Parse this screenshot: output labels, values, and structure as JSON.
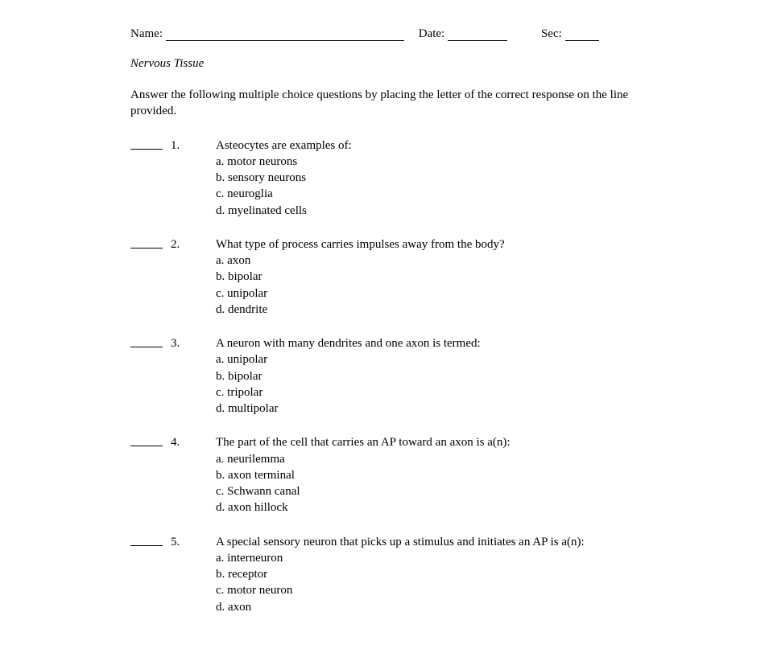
{
  "header": {
    "name_label": "Name: ",
    "date_label": "Date: ",
    "sec_label": "Sec: ",
    "name_underline_width": 296,
    "date_underline_width": 74,
    "sec_underline_width": 42,
    "gap_name_date": 18,
    "gap_date_sec": 42
  },
  "title": "Nervous Tissue",
  "instructions": "Answer the following multiple choice questions by placing the letter of the correct response on the line provided.",
  "questions": [
    {
      "number": "1.",
      "prompt": "Asteocytes are examples of:",
      "options": [
        "a. motor neurons",
        "b. sensory neurons",
        "c. neuroglia",
        "d. myelinated cells"
      ]
    },
    {
      "number": "2.",
      "prompt": "What type of process carries impulses away from the body?",
      "options": [
        "a. axon",
        "b. bipolar",
        "c. unipolar",
        "d. dendrite"
      ]
    },
    {
      "number": "3.",
      "prompt": "A neuron with many dendrites and one axon is termed:",
      "options": [
        "a. unipolar",
        "b. bipolar",
        "c. tripolar",
        "d. multipolar"
      ]
    },
    {
      "number": "4.",
      "prompt": "The part of the cell that carries an AP toward an axon is a(n):",
      "options": [
        "a. neurilemma",
        "b. axon terminal",
        "c. Schwann canal",
        "d. axon hillock"
      ]
    },
    {
      "number": "5.",
      "prompt": "A special sensory neuron that picks up a stimulus and initiates an AP is a(n):",
      "options": [
        "a. interneuron",
        "b. receptor",
        "c. motor neuron",
        "d. axon"
      ]
    }
  ]
}
